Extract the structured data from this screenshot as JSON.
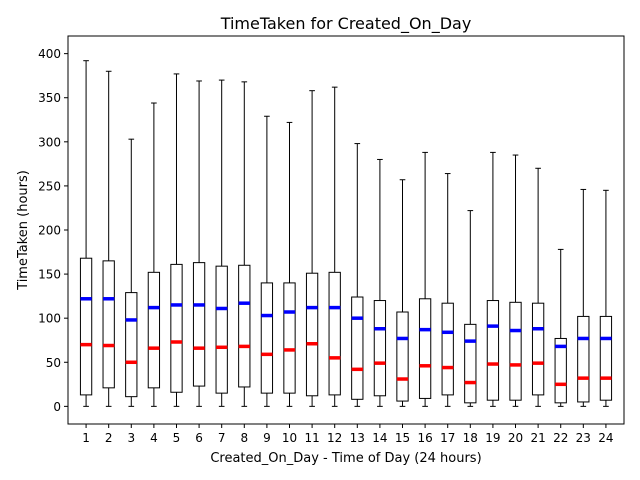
{
  "chart_data": {
    "type": "box",
    "title": "TimeTaken for Created_On_Day",
    "xlabel": "Created_On_Day - Time of Day (24 hours)",
    "ylabel": "TimeTaken (hours)",
    "ylim": [
      -20,
      420
    ],
    "yticks": [
      0,
      50,
      100,
      150,
      200,
      250,
      300,
      350,
      400
    ],
    "median_color": "#ff0000",
    "mean_color": "#0000ff",
    "categories": [
      "1",
      "2",
      "3",
      "4",
      "5",
      "6",
      "7",
      "8",
      "9",
      "10",
      "11",
      "12",
      "13",
      "14",
      "15",
      "16",
      "17",
      "18",
      "19",
      "20",
      "21",
      "22",
      "23",
      "24"
    ],
    "boxes": [
      {
        "whislo": 0,
        "q1": 13,
        "med": 70,
        "mean": 122,
        "q3": 168,
        "whishi": 392
      },
      {
        "whislo": 0,
        "q1": 21,
        "med": 69,
        "mean": 122,
        "q3": 165,
        "whishi": 380
      },
      {
        "whislo": 0,
        "q1": 11,
        "med": 50,
        "mean": 98,
        "q3": 129,
        "whishi": 303
      },
      {
        "whislo": 0,
        "q1": 21,
        "med": 66,
        "mean": 112,
        "q3": 152,
        "whishi": 344
      },
      {
        "whislo": 0,
        "q1": 16,
        "med": 73,
        "mean": 115,
        "q3": 161,
        "whishi": 377
      },
      {
        "whislo": 0,
        "q1": 23,
        "med": 66,
        "mean": 115,
        "q3": 163,
        "whishi": 369
      },
      {
        "whislo": 0,
        "q1": 15,
        "med": 67,
        "mean": 111,
        "q3": 159,
        "whishi": 370
      },
      {
        "whislo": 0,
        "q1": 22,
        "med": 68,
        "mean": 117,
        "q3": 160,
        "whishi": 368
      },
      {
        "whislo": 0,
        "q1": 15,
        "med": 59,
        "mean": 103,
        "q3": 140,
        "whishi": 329
      },
      {
        "whislo": 0,
        "q1": 15,
        "med": 64,
        "mean": 107,
        "q3": 140,
        "whishi": 322
      },
      {
        "whislo": 0,
        "q1": 12,
        "med": 71,
        "mean": 112,
        "q3": 151,
        "whishi": 358
      },
      {
        "whislo": 0,
        "q1": 13,
        "med": 55,
        "mean": 112,
        "q3": 152,
        "whishi": 362
      },
      {
        "whislo": 0,
        "q1": 8,
        "med": 42,
        "mean": 100,
        "q3": 124,
        "whishi": 298
      },
      {
        "whislo": 0,
        "q1": 12,
        "med": 49,
        "mean": 88,
        "q3": 120,
        "whishi": 280
      },
      {
        "whislo": 0,
        "q1": 6,
        "med": 31,
        "mean": 77,
        "q3": 107,
        "whishi": 257
      },
      {
        "whislo": 0,
        "q1": 9,
        "med": 46,
        "mean": 87,
        "q3": 122,
        "whishi": 288
      },
      {
        "whislo": 0,
        "q1": 13,
        "med": 44,
        "mean": 84,
        "q3": 117,
        "whishi": 264
      },
      {
        "whislo": 0,
        "q1": 4,
        "med": 27,
        "mean": 74,
        "q3": 93,
        "whishi": 222
      },
      {
        "whislo": 0,
        "q1": 7,
        "med": 48,
        "mean": 91,
        "q3": 120,
        "whishi": 288
      },
      {
        "whislo": 0,
        "q1": 7,
        "med": 47,
        "mean": 86,
        "q3": 118,
        "whishi": 285
      },
      {
        "whislo": 0,
        "q1": 13,
        "med": 49,
        "mean": 88,
        "q3": 117,
        "whishi": 270
      },
      {
        "whislo": 0,
        "q1": 4,
        "med": 25,
        "mean": 68,
        "q3": 77,
        "whishi": 178
      },
      {
        "whislo": 0,
        "q1": 5,
        "med": 32,
        "mean": 77,
        "q3": 102,
        "whishi": 246
      },
      {
        "whislo": 0,
        "q1": 7,
        "med": 32,
        "mean": 77,
        "q3": 102,
        "whishi": 245
      }
    ]
  }
}
